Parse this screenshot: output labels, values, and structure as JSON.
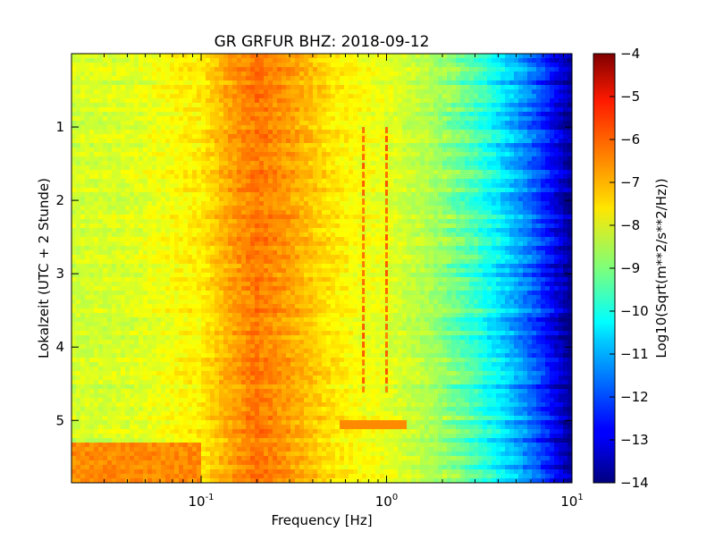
{
  "chart_data": {
    "type": "heatmap",
    "title": "GR GRFUR BHZ: 2018-09-12",
    "xlabel": "Frequency [Hz]",
    "ylabel": "Lokalzeit (UTC + 2 Stunde)",
    "xscale": "log",
    "xlim": [
      0.02,
      10
    ],
    "ylim": [
      5.85,
      0.0
    ],
    "x_ticks": [
      {
        "value": 0.1,
        "base": "10",
        "exp": "-1"
      },
      {
        "value": 1,
        "base": "10",
        "exp": "0"
      },
      {
        "value": 10,
        "base": "10",
        "exp": "1"
      }
    ],
    "y_ticks": [
      {
        "value": 1,
        "label": "1"
      },
      {
        "value": 2,
        "label": "2"
      },
      {
        "value": 3,
        "label": "3"
      },
      {
        "value": 4,
        "label": "4"
      },
      {
        "value": 5,
        "label": "5"
      }
    ],
    "colorbar": {
      "label": "Log10(Sqrt(m**2/s**2/Hz))",
      "range": [
        -14,
        -4
      ],
      "colormap": "jet",
      "ticks": [
        "-4",
        "-5",
        "-6",
        "-7",
        "-8",
        "-9",
        "-10",
        "-11",
        "-12",
        "-13",
        "-14"
      ]
    },
    "spectrum_profile": {
      "freq_hz": [
        0.02,
        0.04,
        0.06,
        0.08,
        0.1,
        0.14,
        0.2,
        0.3,
        0.5,
        0.7,
        1.0,
        1.5,
        2.0,
        3.0,
        4.0,
        5.0,
        6.0,
        7.0,
        8.0,
        9.0,
        10.0
      ],
      "level": [
        -8.2,
        -8.1,
        -7.9,
        -7.7,
        -7.6,
        -6.9,
        -6.4,
        -6.8,
        -7.5,
        -7.8,
        -8.0,
        -8.4,
        -8.8,
        -9.6,
        -10.4,
        -11.1,
        -11.7,
        -12.3,
        -12.9,
        -13.4,
        -13.9
      ]
    },
    "annotations": [
      {
        "type": "narrow_line",
        "freq_hz": 0.75,
        "time_start": 1.0,
        "time_end": 4.6,
        "level": -6.3
      },
      {
        "type": "narrow_line",
        "freq_hz": 1.0,
        "time_start": 1.0,
        "time_end": 4.6,
        "level": -6.3
      },
      {
        "type": "event",
        "time": 5.05,
        "freq_range_hz": [
          0.55,
          1.3
        ],
        "level": -6.6
      },
      {
        "type": "low_freq_noise",
        "time_range": [
          5.3,
          5.85
        ],
        "freq_range_hz": [
          0.02,
          0.1
        ],
        "level": -6.6
      }
    ]
  }
}
